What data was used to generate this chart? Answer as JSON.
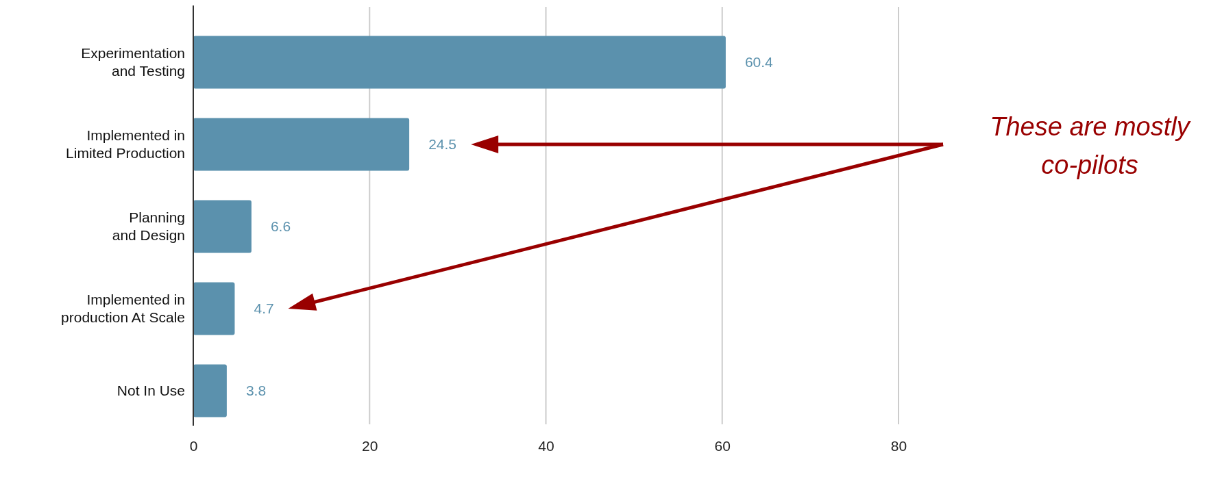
{
  "chart_data": {
    "type": "bar",
    "orientation": "horizontal",
    "categories": [
      "Experimentation and Testing",
      "Implemented in Limited Production",
      "Planning and Design",
      "Implemented in production At Scale",
      "Not In Use"
    ],
    "values": [
      60.4,
      24.5,
      6.6,
      4.7,
      3.8
    ],
    "color": "#5b91ad",
    "data_labels": true,
    "grid": "x",
    "xlim": [
      0,
      80
    ],
    "xticks": [
      0,
      20,
      40,
      60,
      80
    ],
    "annotations": [
      "These are mostly co-pilots"
    ]
  }
}
